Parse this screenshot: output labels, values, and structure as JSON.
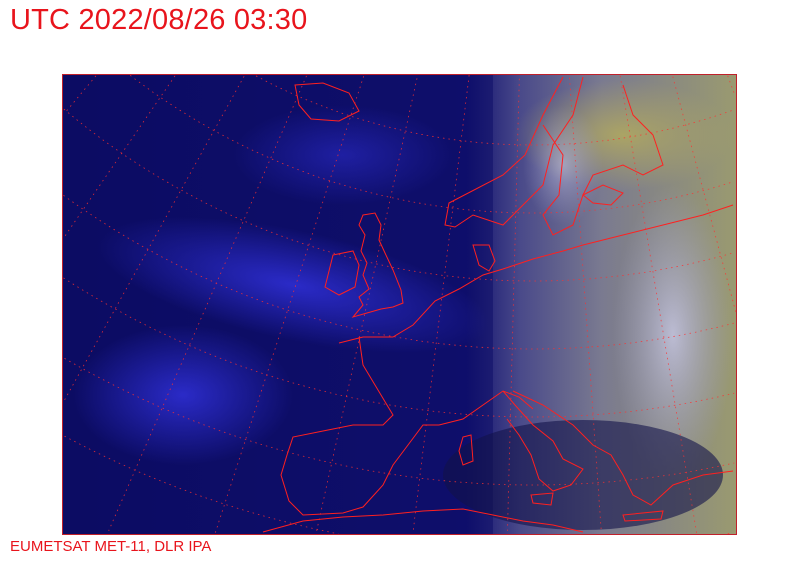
{
  "title": "UTC 2022/08/26 03:30",
  "credit": "EUMETSAT MET-11, DLR IPA",
  "map": {
    "imagery": "satellite-composite-europe",
    "colors": {
      "ocean": "#0a0a5a",
      "cloud_band": "#2a2ad0",
      "land_east": "#8a8a70",
      "coastline": "#ff2020",
      "graticule": "#ff3030",
      "text": "#e8141c"
    }
  }
}
